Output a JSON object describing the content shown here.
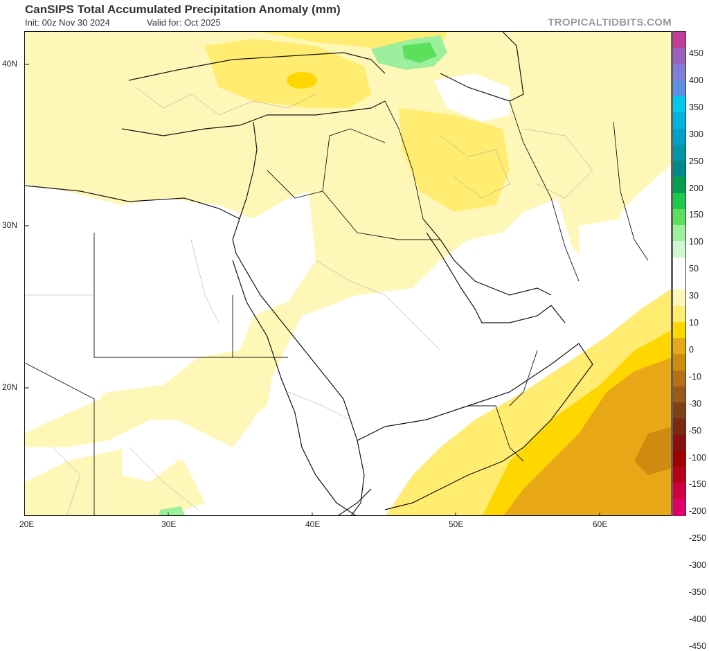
{
  "header": {
    "title": "CanSIPS Total Accumulated Precipitation Anomaly (mm)",
    "init": "Init: 00z Nov 30 2024",
    "valid": "Valid for: Oct 2025",
    "brand": "TROPICALTIDBITS.COM"
  },
  "map": {
    "lat_labels": [
      "40N",
      "30N",
      "20N"
    ],
    "lon_labels": [
      "20E",
      "30E",
      "40E",
      "50E",
      "60E"
    ],
    "extent": {
      "lon_min": 20,
      "lon_max": 65,
      "lat_min": 12,
      "lat_max": 42
    }
  },
  "colorbar": {
    "labels": [
      "450",
      "400",
      "350",
      "300",
      "250",
      "200",
      "150",
      "100",
      "50",
      "30",
      "10",
      "0",
      "-10",
      "-30",
      "-50",
      "-100",
      "-150",
      "-200",
      "-250",
      "-300",
      "-350",
      "-400",
      "-450"
    ],
    "colors": [
      "#c13c9a",
      "#9a5fc3",
      "#7f7fd8",
      "#5c8ee3",
      "#00c8f0",
      "#00b4e0",
      "#00a0c8",
      "#0096a8",
      "#00888a",
      "#00a050",
      "#1ec84a",
      "#5ae05a",
      "#9cef9c",
      "#d0f8d0",
      "#ffffff",
      "#ffffff",
      "#fff7b8",
      "#ffec70",
      "#ffd700",
      "#e8a818",
      "#d08a10",
      "#b87018",
      "#9a5a1a",
      "#804018",
      "#7a2a10",
      "#8a1010",
      "#a00000",
      "#b80018",
      "#d00040",
      "#e0006a"
    ]
  }
}
